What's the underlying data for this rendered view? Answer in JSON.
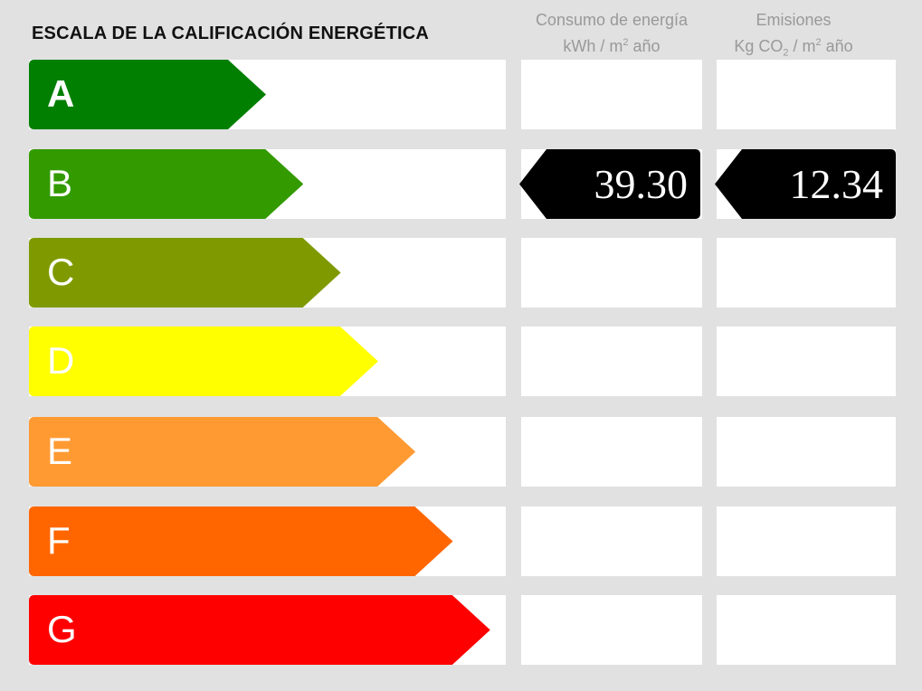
{
  "title": "ESCALA DE LA CALIFICACIÓN ENERGÉTICA",
  "columns": {
    "energy": {
      "line1": "Consumo de energía",
      "line2_pre": "kWh / m",
      "line2_sup": "2",
      "line2_post": " año"
    },
    "emissions": {
      "line1": "Emisiones",
      "line2_pre": "Kg CO",
      "line2_sub": "2",
      "line2_mid": " / m",
      "line2_sup": "2",
      "line2_post": " año"
    }
  },
  "ratings": [
    {
      "letter": "A",
      "color": "#007f00"
    },
    {
      "letter": "B",
      "color": "#339a00"
    },
    {
      "letter": "C",
      "color": "#7f9a00"
    },
    {
      "letter": "D",
      "color": "#ffff00"
    },
    {
      "letter": "E",
      "color": "#ff9a33"
    },
    {
      "letter": "F",
      "color": "#ff6600"
    },
    {
      "letter": "G",
      "color": "#ff0000"
    }
  ],
  "result": {
    "rating": "B",
    "energy_value": "39.30",
    "emissions_value": "12.34",
    "tag_color": "#000000"
  }
}
